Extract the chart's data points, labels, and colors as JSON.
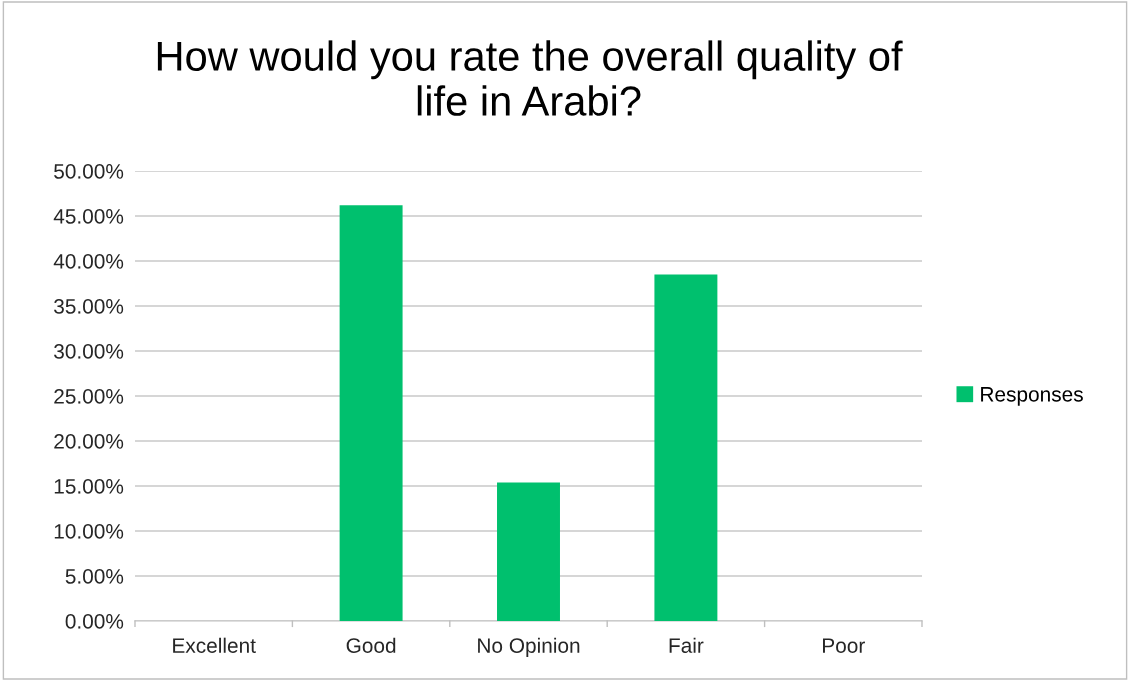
{
  "chart_data": {
    "type": "bar",
    "title": "How would you rate the overall quality of\nlife in Arabi?",
    "categories": [
      "Excellent",
      "Good",
      "No Opinion",
      "Fair",
      "Poor"
    ],
    "series": [
      {
        "name": "Responses",
        "color": "#00c06e",
        "values": [
          0,
          46.2,
          15.4,
          38.5,
          0
        ]
      }
    ],
    "ylim": [
      0,
      50
    ],
    "yticks": [
      {
        "value": 0,
        "label": "0.00%"
      },
      {
        "value": 5,
        "label": "5.00%"
      },
      {
        "value": 10,
        "label": "10.00%"
      },
      {
        "value": 15,
        "label": "15.00%"
      },
      {
        "value": 20,
        "label": "20.00%"
      },
      {
        "value": 25,
        "label": "25.00%"
      },
      {
        "value": 30,
        "label": "30.00%"
      },
      {
        "value": 35,
        "label": "35.00%"
      },
      {
        "value": 40,
        "label": "40.00%"
      },
      {
        "value": 45,
        "label": "45.00%"
      },
      {
        "value": 50,
        "label": "50.00%"
      }
    ],
    "grid": "y",
    "legend": "right"
  }
}
